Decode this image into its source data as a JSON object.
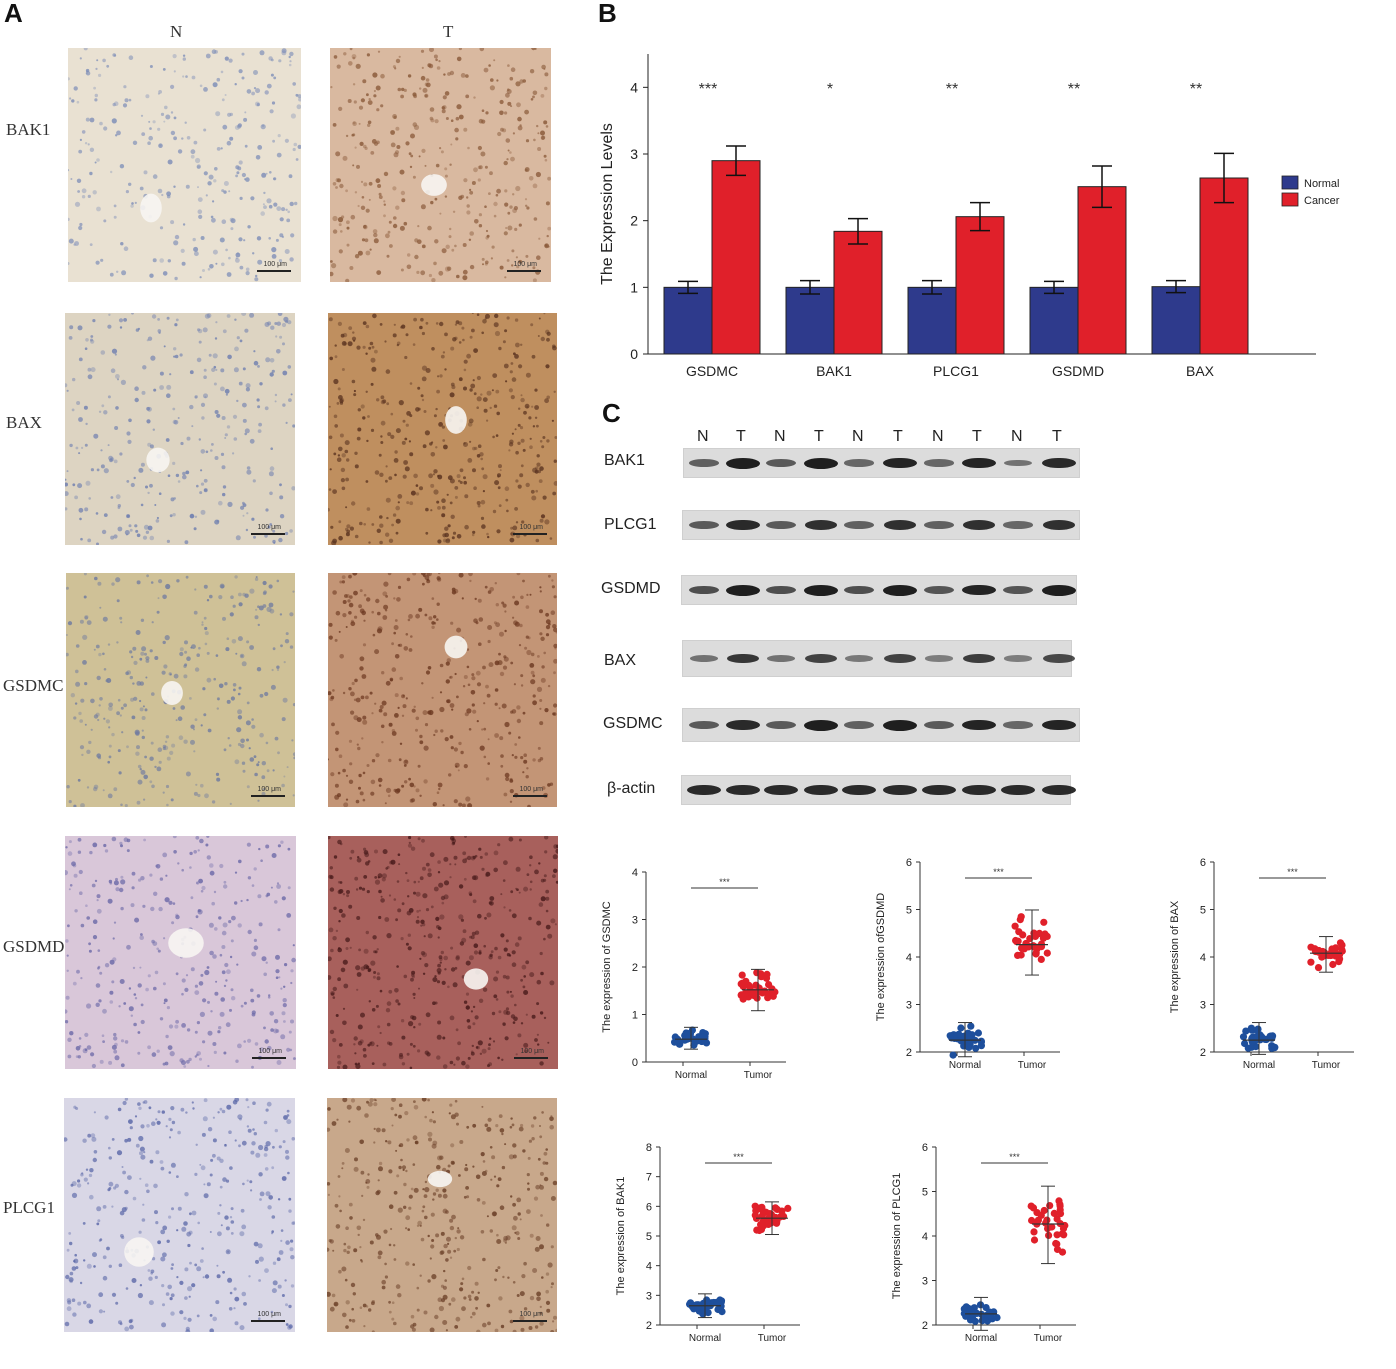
{
  "panels": {
    "a": "A",
    "b": "B",
    "c": "C"
  },
  "ihc": {
    "columns": [
      "N",
      "T"
    ],
    "rows": [
      {
        "label": "BAK1",
        "scale_n": "100 μm",
        "scale_t": "100 μm"
      },
      {
        "label": "BAX",
        "scale_n": "100 μm",
        "scale_t": "100 μm"
      },
      {
        "label": "GSDMC",
        "scale_n": "100 μm",
        "scale_t": "100 μm"
      },
      {
        "label": "GSDMD",
        "scale_n": "100 μm",
        "scale_t": "100 μm"
      },
      {
        "label": "PLCG1",
        "scale_n": "100 μm",
        "scale_t": "100 μm"
      }
    ],
    "colors": {
      "bak1_n": "#e9e1d2",
      "bak1_t": "#d9b9a0",
      "bax_n": "#ddd4c2",
      "bax_t": "#bf8f5f",
      "gsdmc_n": "#cfc197",
      "gsdmc_t": "#c39576",
      "gsdmd_n": "#d9c7d9",
      "gsdmd_t": "#a8605c",
      "plcg1_n": "#d9d7e6",
      "plcg1_t": "#c8a88b"
    }
  },
  "western": {
    "lanes": [
      "N",
      "T",
      "N",
      "T",
      "N",
      "T",
      "N",
      "T",
      "N",
      "T"
    ],
    "blots": [
      "BAK1",
      "PLCG1",
      "GSDMD",
      "BAX",
      "GSDMC",
      "β-actin"
    ]
  },
  "chart_data": [
    {
      "type": "bar",
      "panel": "B",
      "ylabel": "The Expression Levels",
      "ylim": [
        0,
        4.5
      ],
      "yticks": [
        0,
        1,
        2,
        3,
        4
      ],
      "categories": [
        "GSDMC",
        "BAK1",
        "PLCG1",
        "GSDMD",
        "BAX"
      ],
      "series": [
        {
          "name": "Normal",
          "color": "#2e3a8c",
          "values": [
            1.0,
            1.0,
            1.0,
            1.0,
            1.01
          ],
          "errors": [
            0.09,
            0.1,
            0.1,
            0.09,
            0.09
          ]
        },
        {
          "name": "Cancer",
          "color": "#e0202a",
          "values": [
            2.9,
            1.84,
            2.06,
            2.51,
            2.64
          ],
          "errors": [
            0.22,
            0.19,
            0.21,
            0.31,
            0.37
          ]
        }
      ],
      "significance": [
        "***",
        "*",
        "**",
        "**",
        "**"
      ],
      "legend": "right"
    },
    {
      "type": "scatter",
      "ylabel": "The expression of GSDMC",
      "categories": [
        "Normal",
        "Tumor"
      ],
      "ylim": [
        0,
        4
      ],
      "yticks": [
        0,
        1,
        2,
        3,
        4
      ],
      "groups": [
        {
          "name": "Normal",
          "color": "#1e4f9c",
          "mean": 0.48,
          "min": 0.27,
          "max": 0.73
        },
        {
          "name": "Tumor",
          "color": "#e0202a",
          "mean": 1.52,
          "min": 1.08,
          "max": 1.95
        }
      ],
      "significance": "***"
    },
    {
      "type": "scatter",
      "ylabel": "The expression ofGSDMD",
      "categories": [
        "Normal",
        "Tumor"
      ],
      "ylim": [
        2,
        6
      ],
      "yticks": [
        2,
        3,
        4,
        5,
        6
      ],
      "groups": [
        {
          "name": "Normal",
          "color": "#1e4f9c",
          "mean": 2.25,
          "min": 1.9,
          "max": 2.62
        },
        {
          "name": "Tumor",
          "color": "#e0202a",
          "mean": 4.26,
          "min": 3.62,
          "max": 4.99
        }
      ],
      "significance": "***"
    },
    {
      "type": "scatter",
      "ylabel": "The expression of BAX",
      "categories": [
        "Normal",
        "Tumor"
      ],
      "ylim": [
        2,
        6
      ],
      "yticks": [
        2,
        3,
        4,
        5,
        6
      ],
      "groups": [
        {
          "name": "Normal",
          "color": "#1e4f9c",
          "mean": 2.25,
          "min": 1.95,
          "max": 2.62
        },
        {
          "name": "Tumor",
          "color": "#e0202a",
          "mean": 4.08,
          "min": 3.68,
          "max": 4.43
        }
      ],
      "significance": "***"
    },
    {
      "type": "scatter",
      "ylabel": "The expression of BAK1",
      "categories": [
        "Normal",
        "Tumor"
      ],
      "ylim": [
        2,
        8
      ],
      "yticks": [
        2,
        3,
        4,
        5,
        6,
        7,
        8
      ],
      "groups": [
        {
          "name": "Normal",
          "color": "#1e4f9c",
          "mean": 2.65,
          "min": 2.25,
          "max": 3.05
        },
        {
          "name": "Tumor",
          "color": "#e0202a",
          "mean": 5.6,
          "min": 5.05,
          "max": 6.15
        }
      ],
      "significance": "***"
    },
    {
      "type": "scatter",
      "ylabel": "The expression of PLCG1",
      "categories": [
        "Normal",
        "Tumor"
      ],
      "ylim": [
        2,
        6
      ],
      "yticks": [
        2,
        3,
        4,
        5,
        6
      ],
      "groups": [
        {
          "name": "Normal",
          "color": "#1e4f9c",
          "mean": 2.25,
          "min": 1.88,
          "max": 2.62
        },
        {
          "name": "Tumor",
          "color": "#e0202a",
          "mean": 4.27,
          "min": 3.38,
          "max": 5.12
        }
      ],
      "significance": "***"
    }
  ]
}
